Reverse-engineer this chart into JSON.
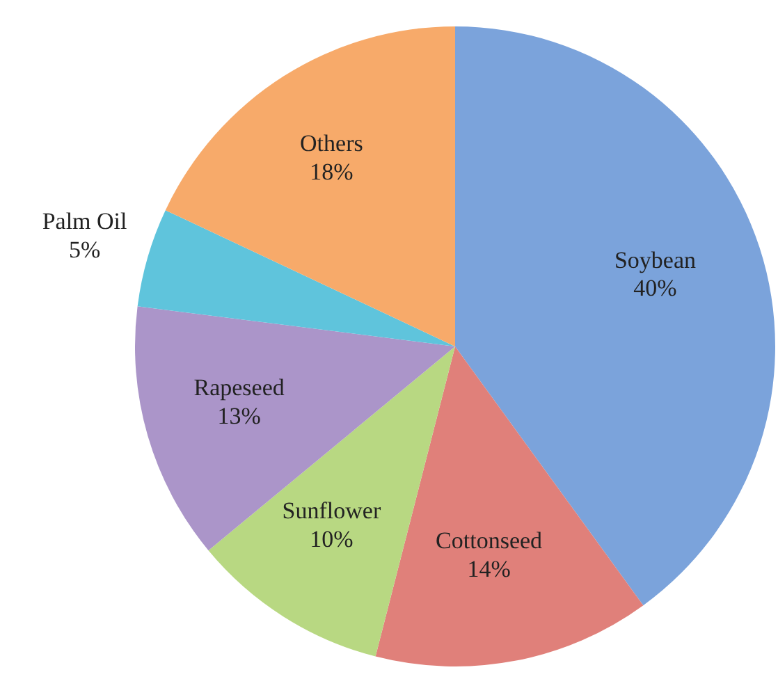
{
  "chart_data": {
    "type": "pie",
    "categories": [
      "Soybean",
      "Cottonseed",
      "Sunflower",
      "Rapeseed",
      "Palm Oil",
      "Others"
    ],
    "values": [
      40,
      14,
      10,
      13,
      5,
      18
    ],
    "value_labels": [
      "40%",
      "14%",
      "10%",
      "13%",
      "5%",
      "18%"
    ],
    "colors": [
      "#7ba3db",
      "#e0807a",
      "#b8d882",
      "#ab95c9",
      "#5fc4dc",
      "#f7aa6a"
    ]
  }
}
